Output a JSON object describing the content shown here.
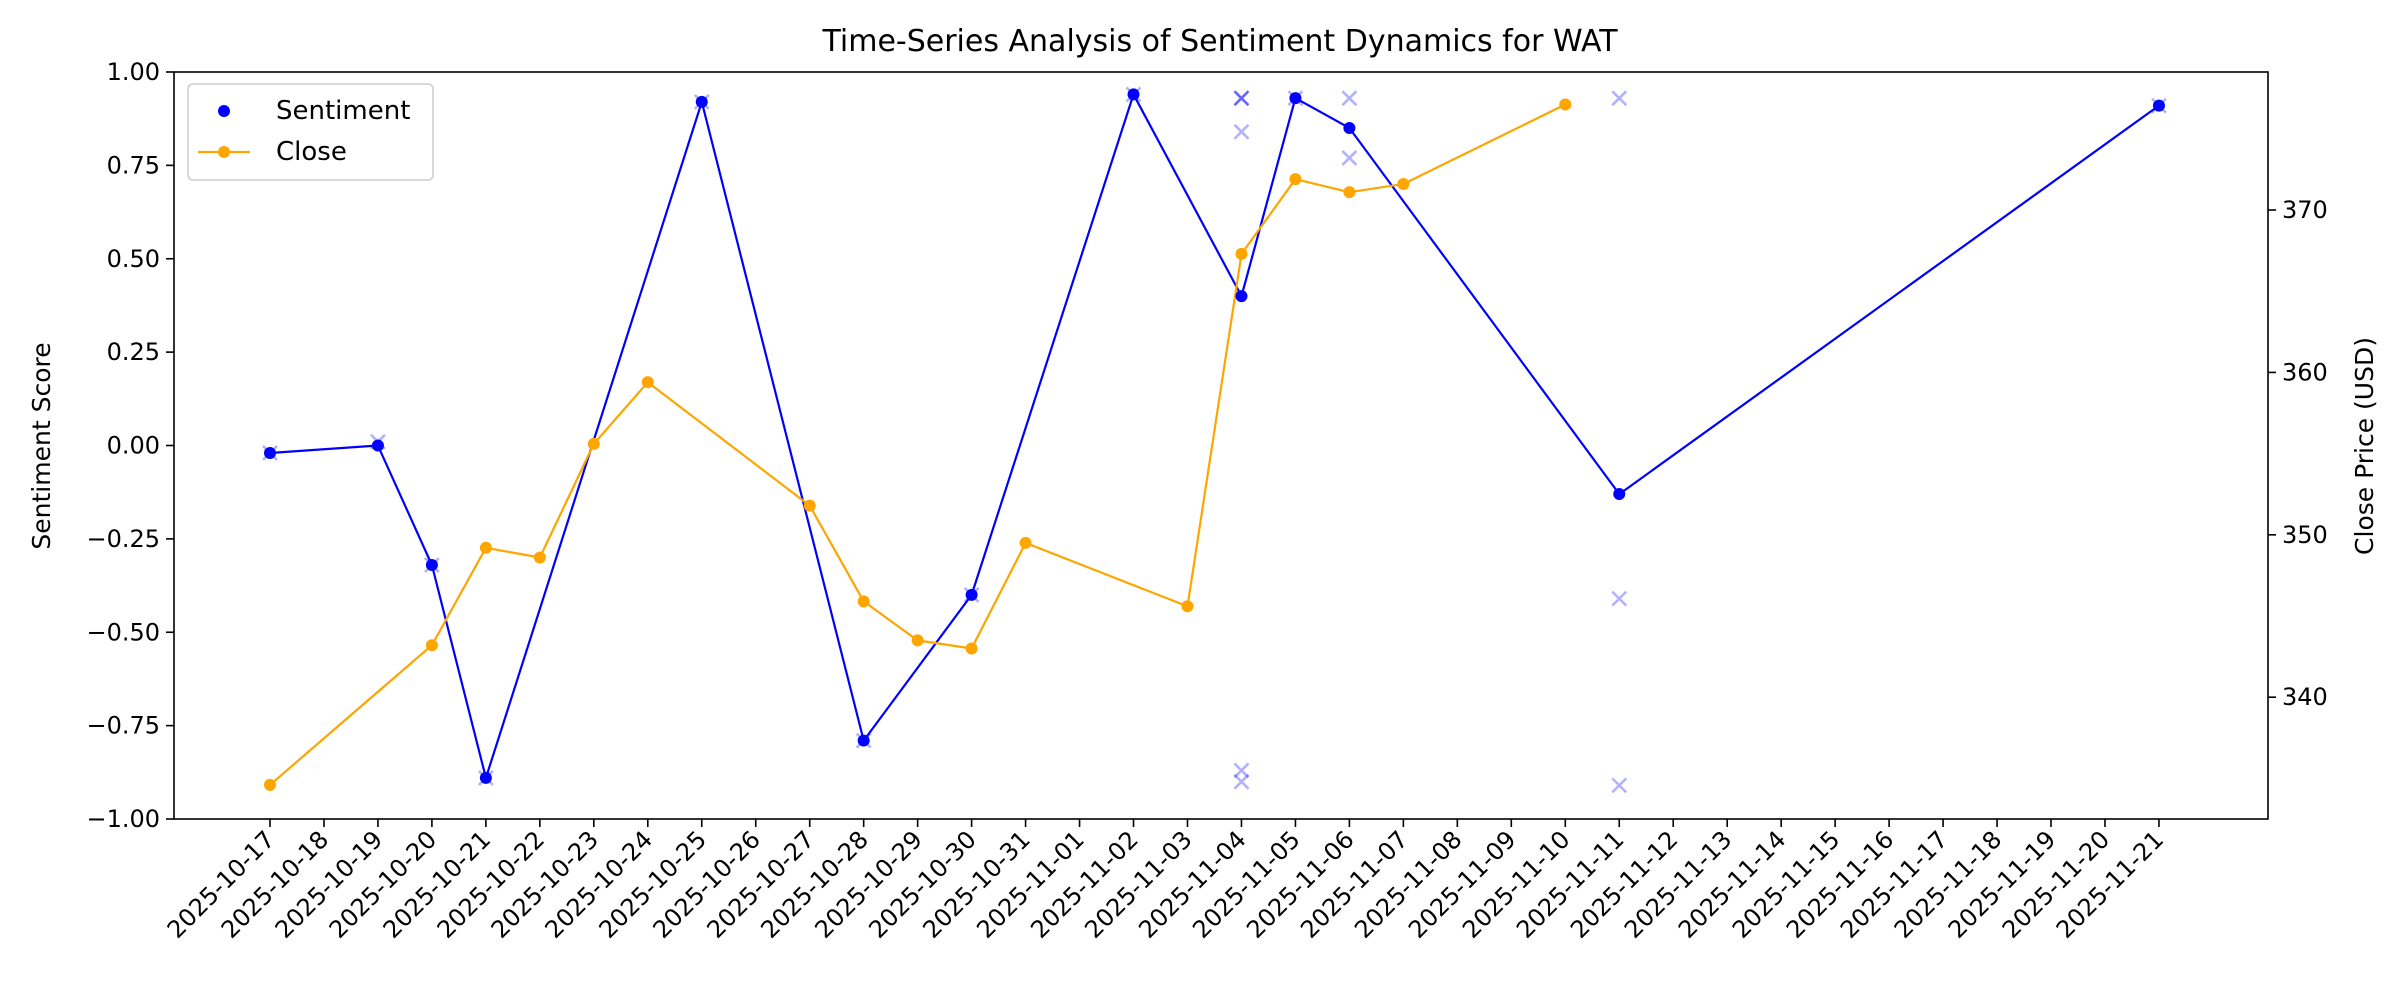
{
  "chart_data": {
    "type": "line",
    "title": "Time-Series Analysis of Sentiment Dynamics for WAT",
    "ylabel_left": "Sentiment Score",
    "ylabel_right": "Close Price (USD)",
    "ylim_left": [
      -1.0,
      1.0
    ],
    "ylim_right": [
      332.5,
      378.5
    ],
    "left_ticks": [
      "1.00",
      "0.75",
      "0.50",
      "0.25",
      "0.00",
      "−0.25",
      "−0.50",
      "−0.75",
      "−1.00"
    ],
    "left_tick_values": [
      1.0,
      0.75,
      0.5,
      0.25,
      0.0,
      -0.25,
      -0.5,
      -0.75,
      -1.0
    ],
    "right_ticks": [
      "340",
      "350",
      "360",
      "370"
    ],
    "right_tick_values": [
      340,
      350,
      360,
      370
    ],
    "x_ticks": [
      "2025-10-17",
      "2025-10-18",
      "2025-10-19",
      "2025-10-20",
      "2025-10-21",
      "2025-10-22",
      "2025-10-23",
      "2025-10-24",
      "2025-10-25",
      "2025-10-26",
      "2025-10-27",
      "2025-10-28",
      "2025-10-29",
      "2025-10-30",
      "2025-10-31",
      "2025-11-01",
      "2025-11-02",
      "2025-11-03",
      "2025-11-04",
      "2025-11-05",
      "2025-11-06",
      "2025-11-07",
      "2025-11-08",
      "2025-11-09",
      "2025-11-10",
      "2025-11-11",
      "2025-11-12",
      "2025-11-13",
      "2025-11-14",
      "2025-11-15",
      "2025-11-16",
      "2025-11-17",
      "2025-11-18",
      "2025-11-19",
      "2025-11-20",
      "2025-11-21"
    ],
    "legend": {
      "location": "upper-left",
      "entries": [
        {
          "label": "Sentiment",
          "marker": "dot"
        },
        {
          "label": "Close",
          "marker": "line-dot"
        }
      ]
    },
    "series": [
      {
        "name": "Sentiment",
        "axis": "left",
        "color": "#0000ff",
        "points": [
          {
            "x": "2025-10-17",
            "y": -0.02
          },
          {
            "x": "2025-10-19",
            "y": 0.0
          },
          {
            "x": "2025-10-20",
            "y": -0.32
          },
          {
            "x": "2025-10-21",
            "y": -0.89
          },
          {
            "x": "2025-10-25",
            "y": 0.92
          },
          {
            "x": "2025-10-28",
            "y": -0.79
          },
          {
            "x": "2025-10-30",
            "y": -0.4
          },
          {
            "x": "2025-11-02",
            "y": 0.94
          },
          {
            "x": "2025-11-04",
            "y": 0.4
          },
          {
            "x": "2025-11-05",
            "y": 0.93
          },
          {
            "x": "2025-11-06",
            "y": 0.85
          },
          {
            "x": "2025-11-11",
            "y": -0.13
          },
          {
            "x": "2025-11-21",
            "y": 0.91
          }
        ]
      },
      {
        "name": "Close",
        "axis": "right",
        "color": "#ffa500",
        "points": [
          {
            "x": "2025-10-17",
            "y": 334.6
          },
          {
            "x": "2025-10-20",
            "y": 343.2
          },
          {
            "x": "2025-10-21",
            "y": 349.2
          },
          {
            "x": "2025-10-22",
            "y": 348.6
          },
          {
            "x": "2025-10-23",
            "y": 355.6
          },
          {
            "x": "2025-10-24",
            "y": 359.4
          },
          {
            "x": "2025-10-27",
            "y": 351.8
          },
          {
            "x": "2025-10-28",
            "y": 345.9
          },
          {
            "x": "2025-10-29",
            "y": 343.5
          },
          {
            "x": "2025-10-30",
            "y": 343.0
          },
          {
            "x": "2025-10-31",
            "y": 349.5
          },
          {
            "x": "2025-11-03",
            "y": 345.6
          },
          {
            "x": "2025-11-04",
            "y": 367.3
          },
          {
            "x": "2025-11-05",
            "y": 371.9
          },
          {
            "x": "2025-11-06",
            "y": 371.1
          },
          {
            "x": "2025-11-07",
            "y": 371.6
          },
          {
            "x": "2025-11-10",
            "y": 376.5
          }
        ]
      }
    ],
    "scatter_x_markers": {
      "axis": "left",
      "color": "#0000ff",
      "points": [
        {
          "x": "2025-10-17",
          "y": -0.02,
          "alpha": 0.3
        },
        {
          "x": "2025-10-19",
          "y": 0.01,
          "alpha": 0.3
        },
        {
          "x": "2025-10-20",
          "y": -0.32,
          "alpha": 0.3
        },
        {
          "x": "2025-10-21",
          "y": -0.89,
          "alpha": 0.3
        },
        {
          "x": "2025-10-25",
          "y": 0.92,
          "alpha": 0.3
        },
        {
          "x": "2025-10-28",
          "y": -0.79,
          "alpha": 0.3
        },
        {
          "x": "2025-10-30",
          "y": -0.4,
          "alpha": 0.3
        },
        {
          "x": "2025-11-02",
          "y": 0.94,
          "alpha": 0.3
        },
        {
          "x": "2025-11-04",
          "y": 0.93,
          "alpha": 0.6
        },
        {
          "x": "2025-11-04",
          "y": 0.84,
          "alpha": 0.3
        },
        {
          "x": "2025-11-04",
          "y": -0.87,
          "alpha": 0.3
        },
        {
          "x": "2025-11-04",
          "y": -0.9,
          "alpha": 0.3
        },
        {
          "x": "2025-11-05",
          "y": 0.93,
          "alpha": 0.3
        },
        {
          "x": "2025-11-06",
          "y": 0.93,
          "alpha": 0.3
        },
        {
          "x": "2025-11-06",
          "y": 0.77,
          "alpha": 0.3
        },
        {
          "x": "2025-11-11",
          "y": 0.93,
          "alpha": 0.3
        },
        {
          "x": "2025-11-11",
          "y": -0.41,
          "alpha": 0.3
        },
        {
          "x": "2025-11-11",
          "y": -0.91,
          "alpha": 0.3
        },
        {
          "x": "2025-11-21",
          "y": 0.91,
          "alpha": 0.3
        }
      ]
    }
  }
}
